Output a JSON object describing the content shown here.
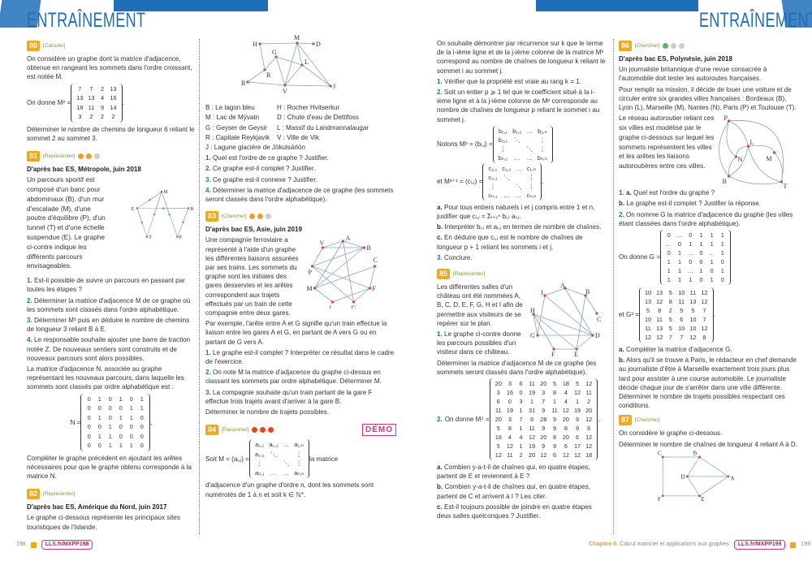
{
  "header": {
    "title_left": "ENTRAÎNEMENT",
    "title_right": "ENTRAÎNEMENT",
    "brand_color": "#1f6fb8"
  },
  "ex80": {
    "num": "80",
    "skill": "[Calculer]",
    "text": "On considère un graphe dont la matrice d'adjacence, obtenue en rangeant les sommets dans l'ordre croissant, est notée M.",
    "lead": "On donne M² =",
    "matrix": [
      [
        "7",
        "7",
        "2",
        "13"
      ],
      [
        "13",
        "13",
        "4",
        "16"
      ],
      [
        "18",
        "11",
        "9",
        "14"
      ],
      [
        "3",
        "2",
        "2",
        "2"
      ]
    ],
    "question": "Déterminer le nombre de chemins de longueur 6 reliant le sommet 2 au sommet 3."
  },
  "ex81": {
    "num": "81",
    "skill": "[Représenter]",
    "source": "D'après bac ES, Métropole, juin 2018",
    "intro": "Un parcours sportif est composé d'un banc pour abdominaux (B), d'un mur d'escalade (M), d'une poutre d'équilibre (P), d'un tunnel (T) et d'une échelle suspendue (E). Le graphe ci-contre indique les différents parcours envisageables.",
    "nodes": [
      "M",
      "E",
      "B",
      "T",
      "P"
    ],
    "q1": "Est-il possible de suivre un parcours en passant par toutes les étapes ?",
    "q2": "Déterminer la matrice d'adjacence M de ce graphe où les sommets sont classés dans l'ordre alphabétique.",
    "q3": "Déterminer M³ puis en déduire le nombre de chemins de longueur 3 reliant B à E.",
    "q4": "Le responsable souhaite ajouter une barre de traction notée Z. De nouveaux sentiers sont construits et de nouveaux parcours sont alors possibles.",
    "p2": "La matrice d'adjacence N, associée au graphe représentant les nouveaux parcours, dans laquelle les sommets sont classés par ordre alphabétique est :",
    "lead": "N =",
    "matrix": [
      [
        "0",
        "1",
        "0",
        "1",
        "0",
        "1"
      ],
      [
        "0",
        "0",
        "0",
        "0",
        "1",
        "1"
      ],
      [
        "0",
        "1",
        "0",
        "1",
        "1",
        "0"
      ],
      [
        "0",
        "0",
        "1",
        "0",
        "0",
        "0"
      ],
      [
        "0",
        "1",
        "1",
        "0",
        "0",
        "0"
      ],
      [
        "0",
        "0",
        "1",
        "1",
        "1",
        "0"
      ]
    ],
    "p3": "Compléter le graphe précédent en ajoutant les arêtes nécessaires pour que le graphe obtenu corresponde à la matrice N."
  },
  "ex82": {
    "num": "82",
    "skill": "[Représenter]",
    "source": "D'après bac ES, Amérique du Nord, juin 2017",
    "intro": "Le graphe ci-dessous représente les principaux sites touristiques de l'Islande.",
    "nodes": [
      "H",
      "M",
      "D",
      "G",
      "L",
      "R",
      "B",
      "V",
      "J"
    ],
    "legend": [
      "B : Le lagon bleu",
      "H : Rocher Hvitserkur",
      "M : Lac de Mývatn",
      "D : Chute d'eau de Dettifoss",
      "G : Geyser de Geysir",
      "L : Massif du Landmannalaugar",
      "R : Capitale Reykjavik",
      "V : Ville de Vik",
      "J : Lagune glacière de Jökulsárlón"
    ],
    "q1": "Quel est l'ordre de ce graphe ? Justifier.",
    "q2": "Ce graphe est-il complet ? Justifier.",
    "q3": "Ce graphe est-il connexe ? Justifier.",
    "q4": "Déterminer la matrice d'adjacence de ce graphe (les sommets seront classés dans l'ordre alphabétique)."
  },
  "ex83": {
    "num": "83",
    "skill": "[Chercher]",
    "source": "D'après bac ES, Asie, juin 2019",
    "intro": "Une compagnie ferroviaire a représenté à l'aide d'un graphe les différentes liaisons assurées par ses trains. Les sommets du graphe sont les initiales des gares desservies et les arêtes correspondent aux trajets effectués par un train de cette compagnie entre deux gares.",
    "nodes": [
      "A",
      "V",
      "B",
      "C",
      "P",
      "M",
      "F",
      "L",
      "G"
    ],
    "example": "Par exemple, l'arête entre A et G signifie qu'un train effectue la liaison entre les gares A et G, en partant de A vers G ou en partant de G vers A.",
    "q1": "Le graphe est-il complet ? Interpréter ce résultat dans le cadre de l'exercice.",
    "q2": "On note M la matrice d'adjacence du graphe ci-dessus en classant les sommets par ordre alphabétique. Déterminer M.",
    "q3": "La compagnie souhaite qu'un train partant de la gare F effectue trois trajets avant d'arriver à la gare B.",
    "q3b": "Déterminer le nombre de trajets possibles."
  },
  "ex84": {
    "num": "84",
    "skill": "[Raisonner]",
    "demo": "DÉMO",
    "lead": "Soit M = (aᵢ,ⱼ) =",
    "after": "la matrice",
    "matrix": [
      [
        "a₁,₁",
        "a₁,₂",
        "…",
        "a₁,ₙ"
      ],
      [
        "a₂,₁",
        "⋱",
        "",
        "⋮"
      ],
      [
        "⋮",
        "",
        "⋱",
        "⋮"
      ],
      [
        "aₙ,₁",
        "…",
        "…",
        "aₙ,ₙ"
      ]
    ],
    "text": "d'adjacence d'un graphe d'ordre n, dont les sommets sont numérotés de 1 à n et soit k ∈ ℕ*.",
    "cont": "On souhaite démontrer par récurrence sur k que le terme de la i-ième ligne et de la j-ième colonne de la matrice Mᵏ correspond au nombre de chaînes de longueur k reliant le sommet i au sommet j.",
    "q1": "Vérifier que la propriété est vraie au rang k = 1.",
    "q2": "Soit un entier p ⩾ 1 tel que le coefficient situé à la i-ième ligne et à la j-ième colonne de Mᵖ corresponde au nombre de chaînes de longueur p reliant le sommet i au sommet j.",
    "lead_b": "Notons Mᵖ = (bᵢ,ⱼ) =",
    "matrix_b": [
      [
        "b₁,₁",
        "b₁,₂",
        "…",
        "b₁,ₙ"
      ],
      [
        "b₂,₁",
        "⋱",
        "",
        "⋮"
      ],
      [
        "⋮",
        "",
        "⋱",
        "⋮"
      ],
      [
        "bₙ,₁",
        "…",
        "…",
        "bₙ,ₙ"
      ]
    ],
    "lead_c": "et Mᵖ⁺¹ = (cᵢ,ⱼ) =",
    "matrix_c": [
      [
        "c₁,₁",
        "c₁,₂",
        "…",
        "c₁,ₙ"
      ],
      [
        "c₂,₁",
        "⋱",
        "",
        "⋮"
      ],
      [
        "⋮",
        "",
        "⋱",
        "⋮"
      ],
      [
        "cₙ,₁",
        "…",
        "…",
        "cₙ,ₙ"
      ]
    ],
    "qa": "Pour tous entiers naturels i et j compris entre 1 et n, justifier que cᵢ,ⱼ = Σₗ₌₁ⁿ bᵢ,ₗ aₗ,ⱼ.",
    "qb": "Interpréter bᵢ,ₗ et aₗ,ⱼ en termes de nombre de chaînes.",
    "qc": "En déduire que cᵢ,ⱼ est le nombre de chaînes de longueur p + 1 reliant les sommets i et j.",
    "q3": "Conclure."
  },
  "ex85": {
    "num": "85",
    "skill": "[Représenter]",
    "intro": "Les différentes salles d'un château ont été nommées A, B, C, D, E, F, G, H et I afin de permettre aux visiteurs de se repérer sur le plan.",
    "nodes": [
      "A",
      "I",
      "B",
      "C",
      "H",
      "G",
      "D",
      "F",
      "E"
    ],
    "q1": "Le graphe ci-contre donne les parcours possibles d'un visiteur dans ce château.",
    "q1b": "Déterminer la matrice d'adjacence M de ce graphe (les sommets seront classés dans l'ordre alphabétique).",
    "lead": "On donne M⁴ =",
    "matrix": [
      [
        "20",
        "3",
        "6",
        "11",
        "20",
        "5",
        "18",
        "5",
        "12"
      ],
      [
        "3",
        "16",
        "0",
        "19",
        "3",
        "8",
        "4",
        "12",
        "11"
      ],
      [
        "6",
        "0",
        "3",
        "1",
        "7",
        "1",
        "4",
        "1",
        "2"
      ],
      [
        "11",
        "19",
        "1",
        "31",
        "9",
        "11",
        "12",
        "19",
        "20"
      ],
      [
        "20",
        "3",
        "7",
        "9",
        "28",
        "9",
        "20",
        "9",
        "12"
      ],
      [
        "5",
        "8",
        "1",
        "11",
        "9",
        "9",
        "8",
        "9",
        "6"
      ],
      [
        "18",
        "4",
        "4",
        "12",
        "20",
        "8",
        "20",
        "6",
        "12"
      ],
      [
        "5",
        "12",
        "1",
        "19",
        "9",
        "9",
        "6",
        "17",
        "12"
      ],
      [
        "12",
        "11",
        "2",
        "20",
        "12",
        "6",
        "12",
        "12",
        "18"
      ]
    ],
    "qa": "Combien y-a-t-il de chaînes qui, en quatre étapes, partent de E et reviennent à E ?",
    "qb": "Combien y-a-t-il de chaînes qui, en quatre étapes, partent de C et arrivent à I ? Les citer.",
    "qc": "Est-il toujours possible de joindre en quatre étapes deux salles quelconques ? Justifier."
  },
  "ex86": {
    "num": "86",
    "skill": "[Chercher]",
    "source": "D'après bac ES, Polynésie, juin 2018",
    "p1": "Un journaliste britannique d'une revue consacrée à l'automobile doit tester les autoroutes françaises.",
    "p2": "Pour remplir sa mission, il décide de louer une voiture et de circuler entre six grandes villes françaises : Bordeaux (B), Lyon (L), Marseille (M), Nantes (N), Paris (P) et Toulouse (T).",
    "p3": "Le réseau autoroutier reliant ces six villes est modélisé par le graphe ci-dessous sur lequel les sommets représentent les villes et les arêtes les liaisons autoroutières entre ces villes.",
    "nodes": [
      "P",
      "L",
      "N",
      "M",
      "B",
      "T"
    ],
    "q1a": "Quel est l'ordre du graphe ?",
    "q1b": "Le graphe est-il complet ? Justifier la réponse.",
    "q2": "On nomme G la matrice d'adjacence du graphe (les villes étant classées dans l'ordre alphabétique).",
    "lead": "On donne G =",
    "matrix": [
      [
        "0",
        "…",
        "0",
        "1",
        "1",
        "1"
      ],
      [
        "…",
        "0",
        "1",
        "1",
        "1",
        "1"
      ],
      [
        "0",
        "1",
        "…",
        "0",
        "…",
        "1"
      ],
      [
        "1",
        "1",
        "0",
        "0",
        "1",
        "0"
      ],
      [
        "1",
        "1",
        "…",
        "1",
        "0",
        "1"
      ],
      [
        "1",
        "1",
        "1",
        "0",
        "1",
        "0"
      ]
    ],
    "lead3": "et G³ =",
    "matrix3": [
      [
        "10",
        "13",
        "5",
        "10",
        "11",
        "12"
      ],
      [
        "13",
        "12",
        "8",
        "11",
        "13",
        "12"
      ],
      [
        "5",
        "8",
        "2",
        "5",
        "5",
        "7"
      ],
      [
        "10",
        "11",
        "5",
        "6",
        "10",
        "7"
      ],
      [
        "11",
        "13",
        "5",
        "10",
        "10",
        "12"
      ],
      [
        "12",
        "12",
        "7",
        "7",
        "12",
        "8"
      ]
    ],
    "qa": "Compléter la matrice d'adjacence G.",
    "qb": "Alors qu'il se trouve à Paris, le rédacteur en chef demande au journaliste d'être à Marseille exactement trois jours plus tard pour assister à une course automobile. Le journaliste décide chaque jour de s'arrêter dans une ville différente.",
    "qb2": "Déterminer le nombre de trajets possibles respectant ces conditions."
  },
  "ex87": {
    "num": "87",
    "skill": "[Chercher]",
    "p1": "On considère le graphe ci-dessous.",
    "p2": "Déterminer le nombre de chaînes de longueur 4 reliant A à D.",
    "nodes": [
      "C",
      "B",
      "D",
      "A",
      "F",
      "E"
    ]
  },
  "labels": {
    "n1": "1.",
    "n2": "2.",
    "n3": "3.",
    "n4": "4.",
    "a": "a.",
    "b": "b.",
    "c": "c."
  },
  "footer": {
    "left_page": "198",
    "left_link": "LLS.fr/MXPP198",
    "chapter": "Chapitre 6.",
    "chapter_title": "Calcul matriciel et applications aux graphes",
    "right_link": "LLS.fr/MXPP199",
    "right_page": "199"
  }
}
